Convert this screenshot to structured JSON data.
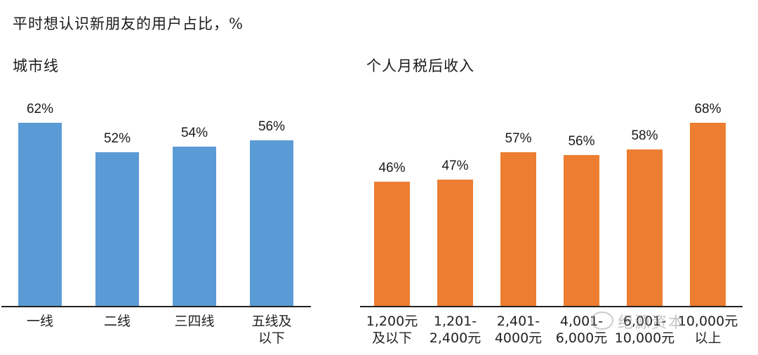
{
  "title": "平时想认识新朋友的用户占比，%",
  "watermark": "纪源资本",
  "chart_data": [
    {
      "type": "bar",
      "title": "城市线",
      "categories": [
        "一线",
        "二线",
        "三四线",
        "五线及以下"
      ],
      "category_lines": [
        [
          "一线"
        ],
        [
          "二线"
        ],
        [
          "三四线"
        ],
        [
          "五线及",
          "以下"
        ]
      ],
      "values": [
        62,
        52,
        54,
        56
      ],
      "labels": [
        "62%",
        "52%",
        "54%",
        "56%"
      ],
      "color": "#5b9bd5",
      "unit": "%",
      "xlabel": "",
      "ylabel": "",
      "grid": false,
      "legend": "none"
    },
    {
      "type": "bar",
      "title": "个人月税后收入",
      "categories": [
        "1,200元及以下",
        "1,201-2,400元",
        "2,401-4000元",
        "4,001-6,000元",
        "6,001-10,000元",
        "10,000元以上"
      ],
      "category_lines": [
        [
          "1,200元",
          "及以下"
        ],
        [
          "1,201-",
          "2,400元"
        ],
        [
          "2,401-",
          "4000元"
        ],
        [
          "4,001-",
          "6,000元"
        ],
        [
          "6,001-",
          "10,000元"
        ],
        [
          "10,000元",
          "以上"
        ]
      ],
      "values": [
        46,
        47,
        57,
        56,
        58,
        68
      ],
      "labels": [
        "46%",
        "47%",
        "57%",
        "56%",
        "58%",
        "68%"
      ],
      "color": "#ed7d31",
      "unit": "%",
      "xlabel": "",
      "ylabel": "",
      "grid": false,
      "legend": "none"
    }
  ]
}
